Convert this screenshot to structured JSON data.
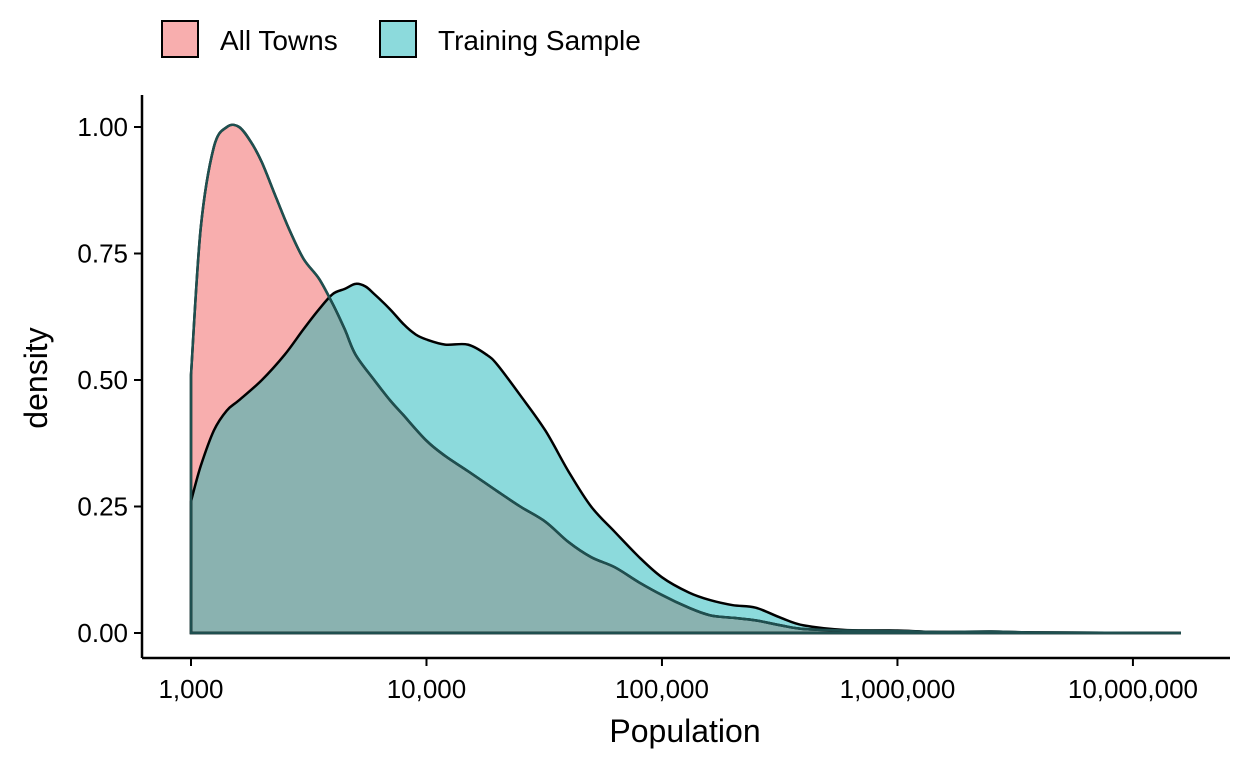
{
  "chart_data": {
    "type": "area",
    "subtype": "density",
    "xlabel": "Population",
    "ylabel": "density",
    "x_scale": "log10",
    "xlim": [
      1000,
      16000000
    ],
    "ylim": [
      0,
      1.0
    ],
    "x_ticks": [
      1000,
      10000,
      100000,
      1000000,
      10000000
    ],
    "x_tick_labels": [
      "1,000",
      "10,000",
      "100,000",
      "1,000,000",
      "10,000,000"
    ],
    "y_ticks": [
      0,
      0.25,
      0.5,
      0.75,
      1.0
    ],
    "y_tick_labels": [
      "0.00",
      "0.25",
      "0.50",
      "0.75",
      "1.00"
    ],
    "grid": false,
    "legend_position": "top-left",
    "overlap_color": "#8AB2B0",
    "series": [
      {
        "name": "All Towns",
        "color": "#F8AEAE",
        "points": [
          [
            1000,
            0.0
          ],
          [
            1000,
            0.51
          ],
          [
            1100,
            0.8
          ],
          [
            1250,
            0.96
          ],
          [
            1420,
            1.0
          ],
          [
            1600,
            1.0
          ],
          [
            1800,
            0.97
          ],
          [
            2000,
            0.93
          ],
          [
            2300,
            0.86
          ],
          [
            2600,
            0.8
          ],
          [
            3000,
            0.74
          ],
          [
            3500,
            0.7
          ],
          [
            4000,
            0.65
          ],
          [
            4500,
            0.6
          ],
          [
            5000,
            0.55
          ],
          [
            6000,
            0.5
          ],
          [
            7000,
            0.46
          ],
          [
            8000,
            0.43
          ],
          [
            10000,
            0.38
          ],
          [
            12000,
            0.35
          ],
          [
            15000,
            0.32
          ],
          [
            20000,
            0.28
          ],
          [
            25000,
            0.25
          ],
          [
            32000,
            0.22
          ],
          [
            40000,
            0.18
          ],
          [
            50000,
            0.15
          ],
          [
            63000,
            0.13
          ],
          [
            80000,
            0.1
          ],
          [
            100000,
            0.075
          ],
          [
            130000,
            0.05
          ],
          [
            160000,
            0.035
          ],
          [
            200000,
            0.03
          ],
          [
            250000,
            0.025
          ],
          [
            320000,
            0.015
          ],
          [
            400000,
            0.008
          ],
          [
            600000,
            0.005
          ],
          [
            1000000,
            0.004
          ],
          [
            1500000,
            0.002
          ],
          [
            2500000,
            0.003
          ],
          [
            4000000,
            0.001
          ],
          [
            16000000,
            0.0
          ]
        ]
      },
      {
        "name": "Training Sample",
        "color": "#8CDADC",
        "points": [
          [
            1000,
            0.0
          ],
          [
            1000,
            0.26
          ],
          [
            1100,
            0.33
          ],
          [
            1250,
            0.4
          ],
          [
            1420,
            0.44
          ],
          [
            1600,
            0.46
          ],
          [
            2000,
            0.5
          ],
          [
            2500,
            0.55
          ],
          [
            3000,
            0.6
          ],
          [
            3500,
            0.64
          ],
          [
            4000,
            0.67
          ],
          [
            4500,
            0.68
          ],
          [
            5000,
            0.69
          ],
          [
            5500,
            0.685
          ],
          [
            6000,
            0.67
          ],
          [
            7000,
            0.64
          ],
          [
            8000,
            0.61
          ],
          [
            9000,
            0.59
          ],
          [
            10000,
            0.58
          ],
          [
            12000,
            0.57
          ],
          [
            15000,
            0.57
          ],
          [
            18000,
            0.55
          ],
          [
            20000,
            0.53
          ],
          [
            25000,
            0.47
          ],
          [
            32000,
            0.4
          ],
          [
            40000,
            0.32
          ],
          [
            50000,
            0.25
          ],
          [
            63000,
            0.2
          ],
          [
            80000,
            0.15
          ],
          [
            100000,
            0.11
          ],
          [
            130000,
            0.08
          ],
          [
            160000,
            0.065
          ],
          [
            200000,
            0.055
          ],
          [
            250000,
            0.05
          ],
          [
            320000,
            0.03
          ],
          [
            400000,
            0.015
          ],
          [
            600000,
            0.006
          ],
          [
            1000000,
            0.005
          ],
          [
            1500000,
            0.002
          ],
          [
            4000000,
            0.001
          ],
          [
            16000000,
            0.0
          ]
        ]
      }
    ]
  }
}
